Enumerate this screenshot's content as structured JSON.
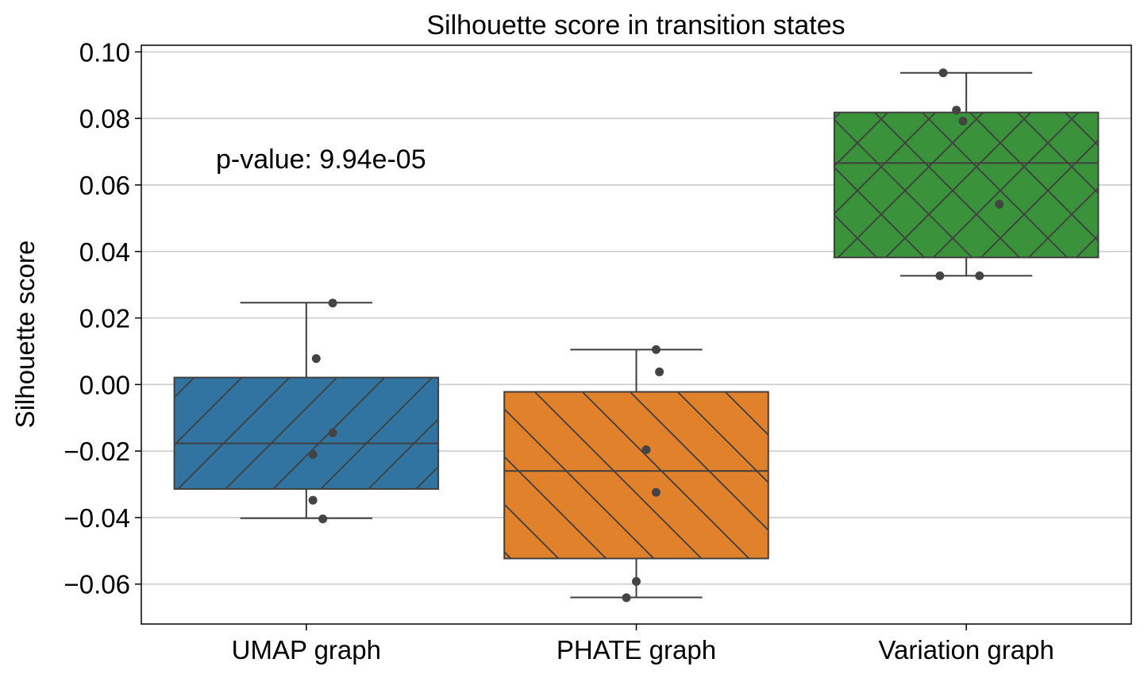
{
  "chart_data": {
    "type": "box",
    "title": "Silhouette score in transition states",
    "xlabel": "",
    "ylabel": "Silhouette score",
    "ylim": [
      -0.072,
      0.102
    ],
    "yticks": [
      0.1,
      0.08,
      0.06,
      0.04,
      0.02,
      0.0,
      -0.02,
      -0.04,
      -0.06
    ],
    "ytick_labels": [
      "0.10",
      "0.08",
      "0.06",
      "0.04",
      "0.02",
      "0.00",
      "−0.02",
      "−0.04",
      "−0.06"
    ],
    "grid": "horizontal",
    "annotation": "p-value: 9.94e-05",
    "categories": [
      "UMAP graph",
      "PHATE graph",
      "Variation graph"
    ],
    "boxes": [
      {
        "category": "UMAP graph",
        "color": "#3274a1",
        "hatch": "forward",
        "whisker_low": -0.0402,
        "q1": -0.0314,
        "median": -0.0177,
        "q3": 0.0021,
        "whisker_high": 0.0246,
        "points": [
          0.0245,
          0.0078,
          -0.0145,
          -0.021,
          -0.0348,
          -0.0404
        ],
        "jitter": [
          0.08,
          0.03,
          0.08,
          0.02,
          0.02,
          0.05
        ]
      },
      {
        "category": "PHATE graph",
        "color": "#e1812c",
        "hatch": "back",
        "whisker_low": -0.064,
        "q1": -0.0523,
        "median": -0.026,
        "q3": -0.0022,
        "whisker_high": 0.0105,
        "points": [
          0.0105,
          0.0038,
          -0.0196,
          -0.0324,
          -0.0592,
          -0.0641
        ],
        "jitter": [
          0.06,
          0.07,
          0.03,
          0.06,
          0.0,
          -0.03
        ]
      },
      {
        "category": "Variation graph",
        "color": "#3a923a",
        "hatch": "cross",
        "whisker_low": 0.0327,
        "q1": 0.0382,
        "median": 0.0666,
        "q3": 0.0818,
        "whisker_high": 0.0937,
        "points": [
          0.0937,
          0.0825,
          0.0792,
          0.0542,
          0.0327,
          0.0327
        ],
        "jitter": [
          -0.07,
          -0.03,
          -0.01,
          0.1,
          -0.08,
          0.04
        ]
      }
    ]
  }
}
